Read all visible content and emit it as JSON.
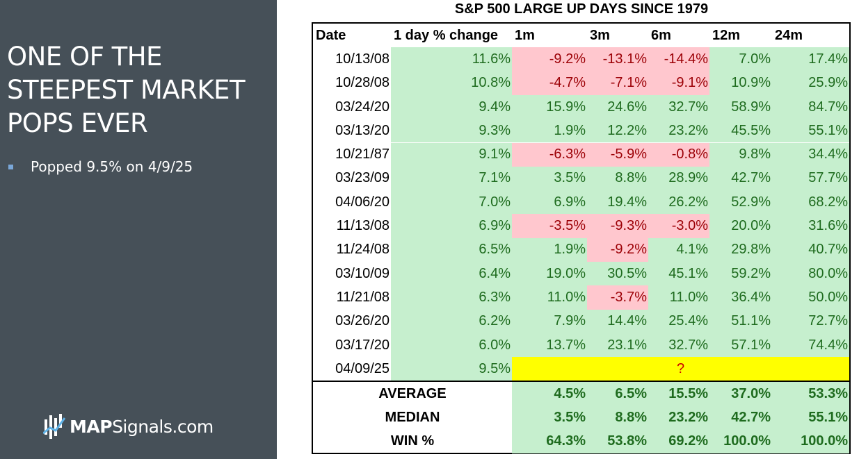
{
  "left_panel": {
    "headline": [
      "ONE OF THE",
      "STEEPEST MARKET",
      "POPS EVER"
    ],
    "bullet": "Popped 9.5% on 4/9/25",
    "logo": {
      "brand": "MAP",
      "rest": "Signals.com"
    }
  },
  "table": {
    "title": "S&P 500 LARGE UP DAYS SINCE 1979",
    "headers": [
      "Date",
      "1 day % change",
      "1m",
      "3m",
      "6m",
      "12m",
      "24m"
    ],
    "rows": [
      {
        "date": "10/13/08",
        "values": [
          "11.6%",
          "-9.2%",
          "-13.1%",
          "-14.4%",
          "7.0%",
          "17.4%"
        ]
      },
      {
        "date": "10/28/08",
        "values": [
          "10.8%",
          "-4.7%",
          "-7.1%",
          "-9.1%",
          "10.9%",
          "25.9%"
        ]
      },
      {
        "date": "03/24/20",
        "values": [
          "9.4%",
          "15.9%",
          "24.6%",
          "32.7%",
          "58.9%",
          "84.7%"
        ]
      },
      {
        "date": "03/13/20",
        "values": [
          "9.3%",
          "1.9%",
          "12.2%",
          "23.2%",
          "45.5%",
          "55.1%"
        ]
      },
      {
        "date": "10/21/87",
        "values": [
          "9.1%",
          "-6.3%",
          "-5.9%",
          "-0.8%",
          "9.8%",
          "34.4%"
        ]
      },
      {
        "date": "03/23/09",
        "values": [
          "7.1%",
          "3.5%",
          "8.8%",
          "28.9%",
          "42.7%",
          "57.7%"
        ]
      },
      {
        "date": "04/06/20",
        "values": [
          "7.0%",
          "6.9%",
          "19.4%",
          "26.2%",
          "52.9%",
          "68.2%"
        ]
      },
      {
        "date": "11/13/08",
        "values": [
          "6.9%",
          "-3.5%",
          "-9.3%",
          "-3.0%",
          "20.0%",
          "31.6%"
        ]
      },
      {
        "date": "11/24/08",
        "values": [
          "6.5%",
          "1.9%",
          "-9.2%",
          "4.1%",
          "29.8%",
          "40.7%"
        ]
      },
      {
        "date": "03/10/09",
        "values": [
          "6.4%",
          "19.0%",
          "30.5%",
          "45.1%",
          "59.2%",
          "80.0%"
        ]
      },
      {
        "date": "11/21/08",
        "values": [
          "6.3%",
          "11.0%",
          "-3.7%",
          "11.0%",
          "36.4%",
          "50.0%"
        ]
      },
      {
        "date": "03/26/20",
        "values": [
          "6.2%",
          "7.9%",
          "14.4%",
          "25.4%",
          "51.1%",
          "72.7%"
        ]
      },
      {
        "date": "03/17/20",
        "values": [
          "6.0%",
          "13.7%",
          "23.1%",
          "32.7%",
          "57.1%",
          "74.4%"
        ]
      }
    ],
    "current": {
      "date": "04/09/25",
      "value": "9.5%",
      "unknown": "?"
    },
    "summary": [
      {
        "label": "AVERAGE",
        "values": [
          "4.5%",
          "6.5%",
          "15.5%",
          "37.0%",
          "53.3%"
        ]
      },
      {
        "label": "MEDIAN",
        "values": [
          "3.5%",
          "8.8%",
          "23.2%",
          "42.7%",
          "55.1%"
        ]
      },
      {
        "label": "WIN %",
        "values": [
          "64.3%",
          "53.8%",
          "69.2%",
          "100.0%",
          "100.0%"
        ]
      }
    ]
  },
  "colors": {
    "panel": "#465058",
    "positive_fill": "#c6efce",
    "positive_text": "#1e6b1e",
    "negative_fill": "#ffc7ce",
    "negative_text": "#9c0006",
    "highlight": "#ffff00"
  }
}
